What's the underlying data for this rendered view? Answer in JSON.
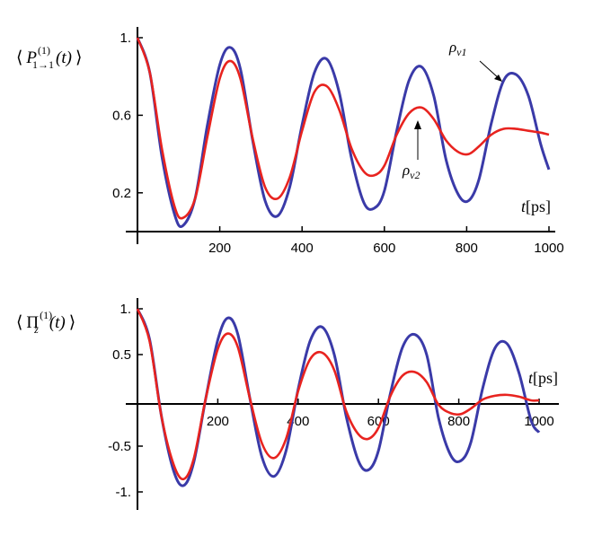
{
  "colors": {
    "rho_v1": "#3a3aa8",
    "rho_v2": "#e8231f"
  },
  "chart_data": [
    {
      "type": "line",
      "ylabel_parts": {
        "open": "⟨",
        "P": "P",
        "sup": "(1)",
        "sub": "1→1",
        "arg": "(t)",
        "close": "⟩"
      },
      "xlabel_parts": {
        "t": "t",
        "unit": "[ps]"
      },
      "xlim": [
        0,
        1000
      ],
      "ylim": [
        0.0,
        1.0
      ],
      "x_ticks": [
        200,
        400,
        600,
        800,
        1000
      ],
      "x_tick_labels": [
        "200",
        "400",
        "600",
        "800",
        "1000"
      ],
      "y_ticks": [
        1.0,
        0.6,
        0.2
      ],
      "y_tick_labels": [
        "1.",
        "0.6",
        "0.2"
      ],
      "annotations": [
        {
          "text_main": "ρ",
          "text_sub": "v1",
          "target_series": 0,
          "x": 910,
          "y": 0.8
        },
        {
          "text_main": "ρ",
          "text_sub": "v2",
          "target_series": 1,
          "x": 688,
          "y": 0.63
        }
      ],
      "series": [
        {
          "x": [
            0,
            30,
            60,
            90,
            110,
            140,
            170,
            200,
            225,
            250,
            280,
            310,
            340,
            370,
            400,
            430,
            460,
            490,
            520,
            550,
            575,
            600,
            630,
            660,
            690,
            720,
            750,
            780,
            805,
            830,
            860,
            890,
            920,
            950,
            980,
            1000
          ],
          "y": [
            1.0,
            0.82,
            0.38,
            0.09,
            0.03,
            0.17,
            0.55,
            0.86,
            0.95,
            0.84,
            0.47,
            0.16,
            0.08,
            0.23,
            0.55,
            0.82,
            0.89,
            0.72,
            0.38,
            0.15,
            0.12,
            0.21,
            0.52,
            0.78,
            0.85,
            0.7,
            0.37,
            0.19,
            0.16,
            0.27,
            0.56,
            0.78,
            0.81,
            0.7,
            0.45,
            0.32
          ]
        },
        {
          "x": [
            0,
            30,
            60,
            90,
            110,
            140,
            170,
            200,
            225,
            250,
            280,
            310,
            340,
            370,
            400,
            430,
            460,
            490,
            520,
            550,
            575,
            600,
            630,
            660,
            690,
            720,
            750,
            780,
            805,
            830,
            860,
            890,
            920,
            950,
            980,
            1000
          ],
          "y": [
            1.0,
            0.82,
            0.42,
            0.13,
            0.07,
            0.17,
            0.49,
            0.79,
            0.88,
            0.79,
            0.48,
            0.23,
            0.17,
            0.28,
            0.52,
            0.72,
            0.75,
            0.63,
            0.43,
            0.31,
            0.29,
            0.34,
            0.5,
            0.61,
            0.64,
            0.58,
            0.47,
            0.41,
            0.4,
            0.44,
            0.5,
            0.53,
            0.53,
            0.52,
            0.51,
            0.5
          ]
        }
      ]
    },
    {
      "type": "line",
      "ylabel_parts": {
        "open": "⟨",
        "P": "Π",
        "sup": "(1)",
        "sub": "z",
        "arg": "(t)",
        "close": "⟩"
      },
      "xlabel_parts": {
        "t": "t",
        "unit": "[ps]"
      },
      "xlim": [
        0,
        1000
      ],
      "ylim": [
        -1.0,
        1.0
      ],
      "x_ticks": [
        200,
        400,
        600,
        800,
        1000
      ],
      "x_tick_labels": [
        "200",
        "400",
        "600",
        "800",
        "1000"
      ],
      "y_ticks": [
        1.0,
        0.5,
        -0.5,
        -1.0
      ],
      "y_tick_labels": [
        "1.",
        "0.5",
        "-0.5",
        "-1."
      ],
      "series": [
        {
          "x": [
            0,
            30,
            60,
            90,
            115,
            140,
            170,
            200,
            225,
            250,
            280,
            310,
            340,
            370,
            400,
            430,
            460,
            490,
            520,
            550,
            575,
            600,
            630,
            660,
            690,
            720,
            750,
            780,
            805,
            830,
            860,
            890,
            920,
            950,
            980,
            1000
          ],
          "y": [
            1.0,
            0.67,
            -0.18,
            -0.77,
            -0.93,
            -0.68,
            0.02,
            0.66,
            0.9,
            0.72,
            0.02,
            -0.62,
            -0.83,
            -0.55,
            0.12,
            0.65,
            0.8,
            0.5,
            -0.18,
            -0.66,
            -0.76,
            -0.55,
            0.08,
            0.58,
            0.72,
            0.5,
            -0.2,
            -0.6,
            -0.66,
            -0.46,
            0.14,
            0.57,
            0.62,
            0.3,
            -0.22,
            -0.35
          ]
        },
        {
          "x": [
            0,
            30,
            60,
            90,
            115,
            140,
            170,
            200,
            225,
            250,
            280,
            310,
            340,
            370,
            400,
            430,
            460,
            490,
            520,
            550,
            575,
            600,
            630,
            660,
            690,
            720,
            750,
            780,
            805,
            830,
            860,
            890,
            920,
            950,
            980,
            1000
          ],
          "y": [
            1.0,
            0.65,
            -0.18,
            -0.7,
            -0.86,
            -0.64,
            0.02,
            0.56,
            0.73,
            0.58,
            0.02,
            -0.47,
            -0.63,
            -0.42,
            0.1,
            0.45,
            0.52,
            0.33,
            -0.12,
            -0.37,
            -0.42,
            -0.3,
            0.05,
            0.27,
            0.31,
            0.2,
            -0.05,
            -0.14,
            -0.15,
            -0.09,
            0.01,
            0.05,
            0.06,
            0.04,
            0.0,
            0.0
          ]
        }
      ]
    }
  ]
}
